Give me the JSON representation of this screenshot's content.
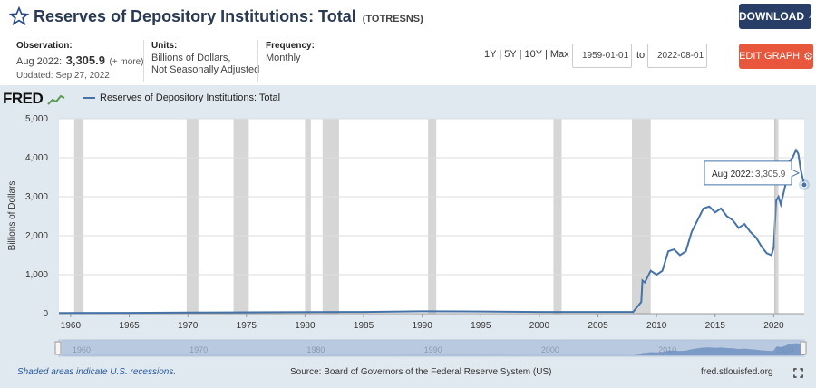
{
  "header": {
    "title": "Reserves of Depository Institutions: Total",
    "series_code": "(TOTRESNS)",
    "download_label": "DOWNLOAD"
  },
  "meta": {
    "observation_label": "Observation:",
    "observation_date": "Aug 2022:",
    "observation_value": "3,305.9",
    "observation_more": "(+ more)",
    "updated": "Updated: Sep 27, 2022",
    "units_label": "Units:",
    "units_line1": "Billions of Dollars,",
    "units_line2": "Not Seasonally Adjusted",
    "frequency_label": "Frequency:",
    "frequency_value": "Monthly"
  },
  "controls": {
    "range_1y": "1Y",
    "range_5y": "5Y",
    "range_10y": "10Y",
    "range_max": "Max",
    "separator": "|",
    "start_date": "1959-01-01",
    "to_label": "to",
    "end_date": "2022-08-01",
    "edit_label": "EDIT GRAPH"
  },
  "panel": {
    "logo": "FRED",
    "footer_left": "Shaded areas indicate U.S. recessions.",
    "footer_source": "Source: Board of Governors of the Federal Reserve System (US)",
    "footer_url": "fred.stlouisfed.org",
    "tooltip_date": "Aug 2022:",
    "tooltip_value": "3,305.9"
  },
  "colors": {
    "line": "#4572a7",
    "recession": "#c8c8c8",
    "download_button": "#283e66",
    "edit_button": "#e8563b",
    "panel_bg": "#e1e9f0"
  },
  "chart_data": {
    "type": "line",
    "legend": "Reserves of Depository Institutions: Total",
    "ylabel": "Billions of Dollars",
    "xlabel": "",
    "ylim": [
      0,
      5000
    ],
    "xlim": [
      1959.0,
      2022.6
    ],
    "yticks": [
      0,
      1000,
      2000,
      3000,
      4000,
      5000
    ],
    "ytick_labels": [
      "0",
      "1,000",
      "2,000",
      "3,000",
      "4,000",
      "5,000"
    ],
    "xticks": [
      1960,
      1965,
      1970,
      1975,
      1980,
      1985,
      1990,
      1995,
      2000,
      2005,
      2010,
      2015,
      2020
    ],
    "navigator_labels": [
      1960,
      1970,
      1980,
      1990,
      2000,
      2010,
      2020
    ],
    "grid": "horizontal",
    "recessions": [
      [
        1960.3,
        1961.1
      ],
      [
        1969.9,
        1970.9
      ],
      [
        1973.9,
        1975.2
      ],
      [
        1980.0,
        1980.5
      ],
      [
        1981.5,
        1982.9
      ],
      [
        1990.5,
        1991.2
      ],
      [
        2001.2,
        2001.9
      ],
      [
        2007.9,
        2009.5
      ],
      [
        2020.1,
        2020.4
      ]
    ],
    "series": [
      {
        "name": "Reserves of Depository Institutions: Total",
        "x": [
          1959.0,
          1965.0,
          1970.0,
          1975.0,
          1980.0,
          1985.0,
          1990.0,
          1993.0,
          1995.0,
          2000.0,
          2005.0,
          2008.0,
          2008.7,
          2008.8,
          2009.0,
          2009.5,
          2010.0,
          2010.5,
          2011.0,
          2011.5,
          2012.0,
          2012.5,
          2013.0,
          2013.5,
          2014.0,
          2014.5,
          2015.0,
          2015.5,
          2016.0,
          2016.5,
          2017.0,
          2017.5,
          2018.0,
          2018.5,
          2019.0,
          2019.4,
          2019.8,
          2020.0,
          2020.2,
          2020.4,
          2020.6,
          2021.0,
          2021.3,
          2021.6,
          2021.9,
          2022.1,
          2022.3,
          2022.6
        ],
        "y": [
          18,
          22,
          28,
          36,
          42,
          45,
          60,
          58,
          55,
          45,
          45,
          45,
          300,
          850,
          800,
          1100,
          1000,
          1100,
          1600,
          1650,
          1500,
          1600,
          2100,
          2400,
          2700,
          2750,
          2600,
          2700,
          2500,
          2400,
          2200,
          2300,
          2100,
          1950,
          1700,
          1550,
          1500,
          1700,
          2900,
          3000,
          2800,
          3300,
          3900,
          4000,
          4200,
          4100,
          3700,
          3305.9
        ]
      }
    ],
    "tooltip": {
      "date": "Aug 2022",
      "value": 3305.9
    }
  }
}
